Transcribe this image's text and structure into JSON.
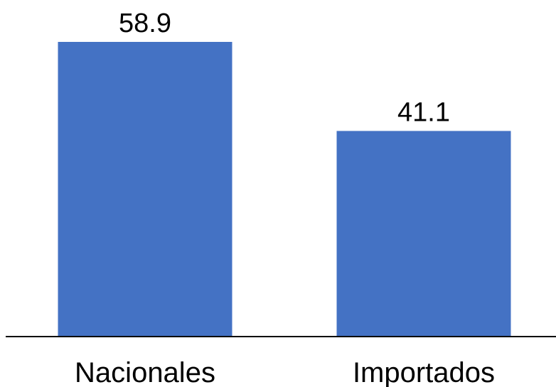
{
  "chart_data": {
    "type": "bar",
    "categories": [
      "Nacionales",
      "Importados"
    ],
    "values": [
      58.9,
      41.1
    ],
    "data_labels": [
      "58.9",
      "41.1"
    ],
    "title": "",
    "xlabel": "",
    "ylabel": "",
    "ylim": [
      0,
      58.9
    ],
    "grid": false,
    "legend": "none",
    "bar_color": "#4472C4",
    "axis_color": "#000000"
  }
}
